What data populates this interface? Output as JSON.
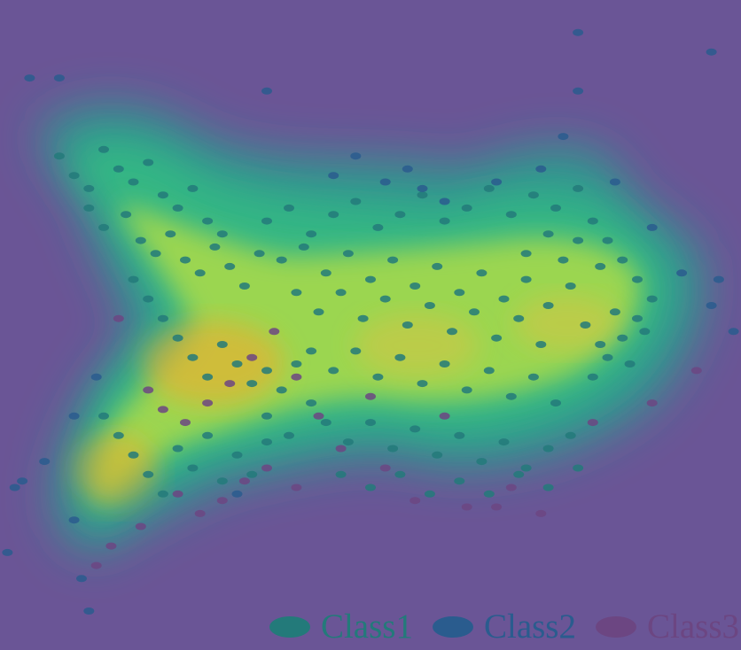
{
  "chart_data": {
    "type": "scatter",
    "title": "",
    "xlabel": "",
    "ylabel": "",
    "xlim": [
      0,
      100
    ],
    "ylim": [
      0,
      100
    ],
    "grid": false,
    "axes_visible": false,
    "density_overlay": true,
    "background_color": "#6a5596",
    "density_colormap": [
      "#6a5596",
      "#2c9e8e",
      "#33b983",
      "#a6d94a",
      "#f9a825"
    ],
    "legend": {
      "position": "bottom-right",
      "entries": [
        {
          "label": "Class1",
          "color": "#237a7a"
        },
        {
          "label": "Class2",
          "color": "#2a5c8e"
        },
        {
          "label": "Class3",
          "color": "#6c4682"
        }
      ]
    },
    "series": [
      {
        "name": "Class1",
        "color": "#237a7a",
        "points": [
          [
            8,
            76
          ],
          [
            10,
            73
          ],
          [
            12,
            71
          ],
          [
            14,
            77
          ],
          [
            16,
            74
          ],
          [
            18,
            72
          ],
          [
            20,
            75
          ],
          [
            22,
            70
          ],
          [
            24,
            68
          ],
          [
            26,
            71
          ],
          [
            28,
            66
          ],
          [
            30,
            64
          ],
          [
            12,
            68
          ],
          [
            14,
            65
          ],
          [
            17,
            67
          ],
          [
            19,
            63
          ],
          [
            21,
            61
          ],
          [
            23,
            64
          ],
          [
            25,
            60
          ],
          [
            27,
            58
          ],
          [
            29,
            62
          ],
          [
            31,
            59
          ],
          [
            33,
            56
          ],
          [
            35,
            61
          ],
          [
            18,
            57
          ],
          [
            20,
            54
          ],
          [
            22,
            51
          ],
          [
            24,
            48
          ],
          [
            26,
            45
          ],
          [
            28,
            42
          ],
          [
            30,
            47
          ],
          [
            32,
            44
          ],
          [
            34,
            41
          ],
          [
            36,
            43
          ],
          [
            38,
            40
          ],
          [
            40,
            44
          ],
          [
            36,
            66
          ],
          [
            39,
            68
          ],
          [
            42,
            64
          ],
          [
            45,
            67
          ],
          [
            48,
            69
          ],
          [
            51,
            65
          ],
          [
            54,
            67
          ],
          [
            57,
            70
          ],
          [
            60,
            66
          ],
          [
            63,
            68
          ],
          [
            66,
            71
          ],
          [
            69,
            67
          ],
          [
            72,
            70
          ],
          [
            75,
            68
          ],
          [
            78,
            71
          ],
          [
            80,
            66
          ],
          [
            82,
            63
          ],
          [
            84,
            60
          ],
          [
            86,
            57
          ],
          [
            88,
            54
          ],
          [
            86,
            51
          ],
          [
            84,
            48
          ],
          [
            82,
            45
          ],
          [
            80,
            42
          ],
          [
            40,
            55
          ],
          [
            43,
            52
          ],
          [
            46,
            55
          ],
          [
            49,
            51
          ],
          [
            52,
            54
          ],
          [
            55,
            50
          ],
          [
            58,
            53
          ],
          [
            61,
            49
          ],
          [
            64,
            52
          ],
          [
            67,
            48
          ],
          [
            70,
            51
          ],
          [
            73,
            47
          ],
          [
            42,
            46
          ],
          [
            45,
            43
          ],
          [
            48,
            46
          ],
          [
            51,
            42
          ],
          [
            54,
            45
          ],
          [
            57,
            41
          ],
          [
            60,
            44
          ],
          [
            63,
            40
          ],
          [
            66,
            43
          ],
          [
            69,
            39
          ],
          [
            72,
            42
          ],
          [
            75,
            38
          ],
          [
            44,
            35
          ],
          [
            47,
            32
          ],
          [
            50,
            35
          ],
          [
            53,
            31
          ],
          [
            56,
            34
          ],
          [
            59,
            30
          ],
          [
            62,
            33
          ],
          [
            65,
            29
          ],
          [
            68,
            32
          ],
          [
            71,
            28
          ],
          [
            74,
            31
          ],
          [
            77,
            33
          ],
          [
            14,
            36
          ],
          [
            16,
            33
          ],
          [
            18,
            30
          ],
          [
            20,
            27
          ],
          [
            22,
            24
          ],
          [
            24,
            31
          ],
          [
            26,
            28
          ],
          [
            28,
            33
          ],
          [
            30,
            26
          ],
          [
            32,
            30
          ],
          [
            34,
            27
          ],
          [
            36,
            32
          ],
          [
            38,
            60
          ],
          [
            41,
            62
          ],
          [
            44,
            58
          ],
          [
            47,
            61
          ],
          [
            50,
            57
          ],
          [
            53,
            60
          ],
          [
            56,
            56
          ],
          [
            59,
            59
          ],
          [
            62,
            55
          ],
          [
            65,
            58
          ],
          [
            68,
            54
          ],
          [
            71,
            57
          ],
          [
            74,
            53
          ],
          [
            77,
            56
          ],
          [
            79,
            50
          ],
          [
            81,
            47
          ],
          [
            83,
            52
          ],
          [
            85,
            44
          ],
          [
            87,
            49
          ],
          [
            76,
            60
          ],
          [
            78,
            63
          ],
          [
            81,
            59
          ],
          [
            74,
            64
          ],
          [
            71,
            61
          ],
          [
            46,
            27
          ],
          [
            50,
            25
          ],
          [
            54,
            27
          ],
          [
            58,
            24
          ],
          [
            62,
            26
          ],
          [
            66,
            24
          ],
          [
            70,
            27
          ],
          [
            74,
            25
          ],
          [
            78,
            28
          ],
          [
            36,
            36
          ],
          [
            39,
            33
          ],
          [
            42,
            38
          ]
        ]
      },
      {
        "name": "Class2",
        "color": "#2a5c8e",
        "points": [
          [
            4,
            88
          ],
          [
            8,
            88
          ],
          [
            36,
            86
          ],
          [
            78,
            95
          ],
          [
            78,
            86
          ],
          [
            96,
            92
          ],
          [
            13,
            42
          ],
          [
            10,
            36
          ],
          [
            6,
            29
          ],
          [
            3,
            26
          ],
          [
            1,
            15
          ],
          [
            11,
            11
          ],
          [
            12,
            6
          ],
          [
            14,
            -2
          ],
          [
            32,
            24
          ],
          [
            97,
            57
          ],
          [
            99,
            49
          ],
          [
            45,
            73
          ],
          [
            52,
            72
          ],
          [
            57,
            71
          ],
          [
            48,
            76
          ],
          [
            55,
            74
          ],
          [
            60,
            69
          ],
          [
            67,
            72
          ],
          [
            73,
            74
          ],
          [
            76,
            79
          ],
          [
            83,
            72
          ],
          [
            88,
            65
          ],
          [
            92,
            58
          ],
          [
            96,
            53
          ],
          [
            2,
            25
          ],
          [
            10,
            20
          ]
        ]
      },
      {
        "name": "Class3",
        "color": "#6c4682",
        "points": [
          [
            16,
            51
          ],
          [
            94,
            43
          ],
          [
            88,
            38
          ],
          [
            80,
            35
          ],
          [
            69,
            25
          ],
          [
            73,
            21
          ],
          [
            40,
            25
          ],
          [
            36,
            28
          ],
          [
            33,
            26
          ],
          [
            30,
            23
          ],
          [
            27,
            21
          ],
          [
            24,
            24
          ],
          [
            19,
            19
          ],
          [
            15,
            16
          ],
          [
            13,
            13
          ],
          [
            15,
            -1
          ],
          [
            43,
            36
          ],
          [
            46,
            31
          ],
          [
            52,
            28
          ],
          [
            56,
            23
          ],
          [
            63,
            22
          ],
          [
            67,
            22
          ],
          [
            50,
            39
          ],
          [
            60,
            36
          ],
          [
            20,
            40
          ],
          [
            22,
            37
          ],
          [
            25,
            35
          ],
          [
            28,
            38
          ],
          [
            31,
            41
          ],
          [
            34,
            45
          ],
          [
            37,
            49
          ],
          [
            40,
            42
          ]
        ]
      }
    ]
  }
}
